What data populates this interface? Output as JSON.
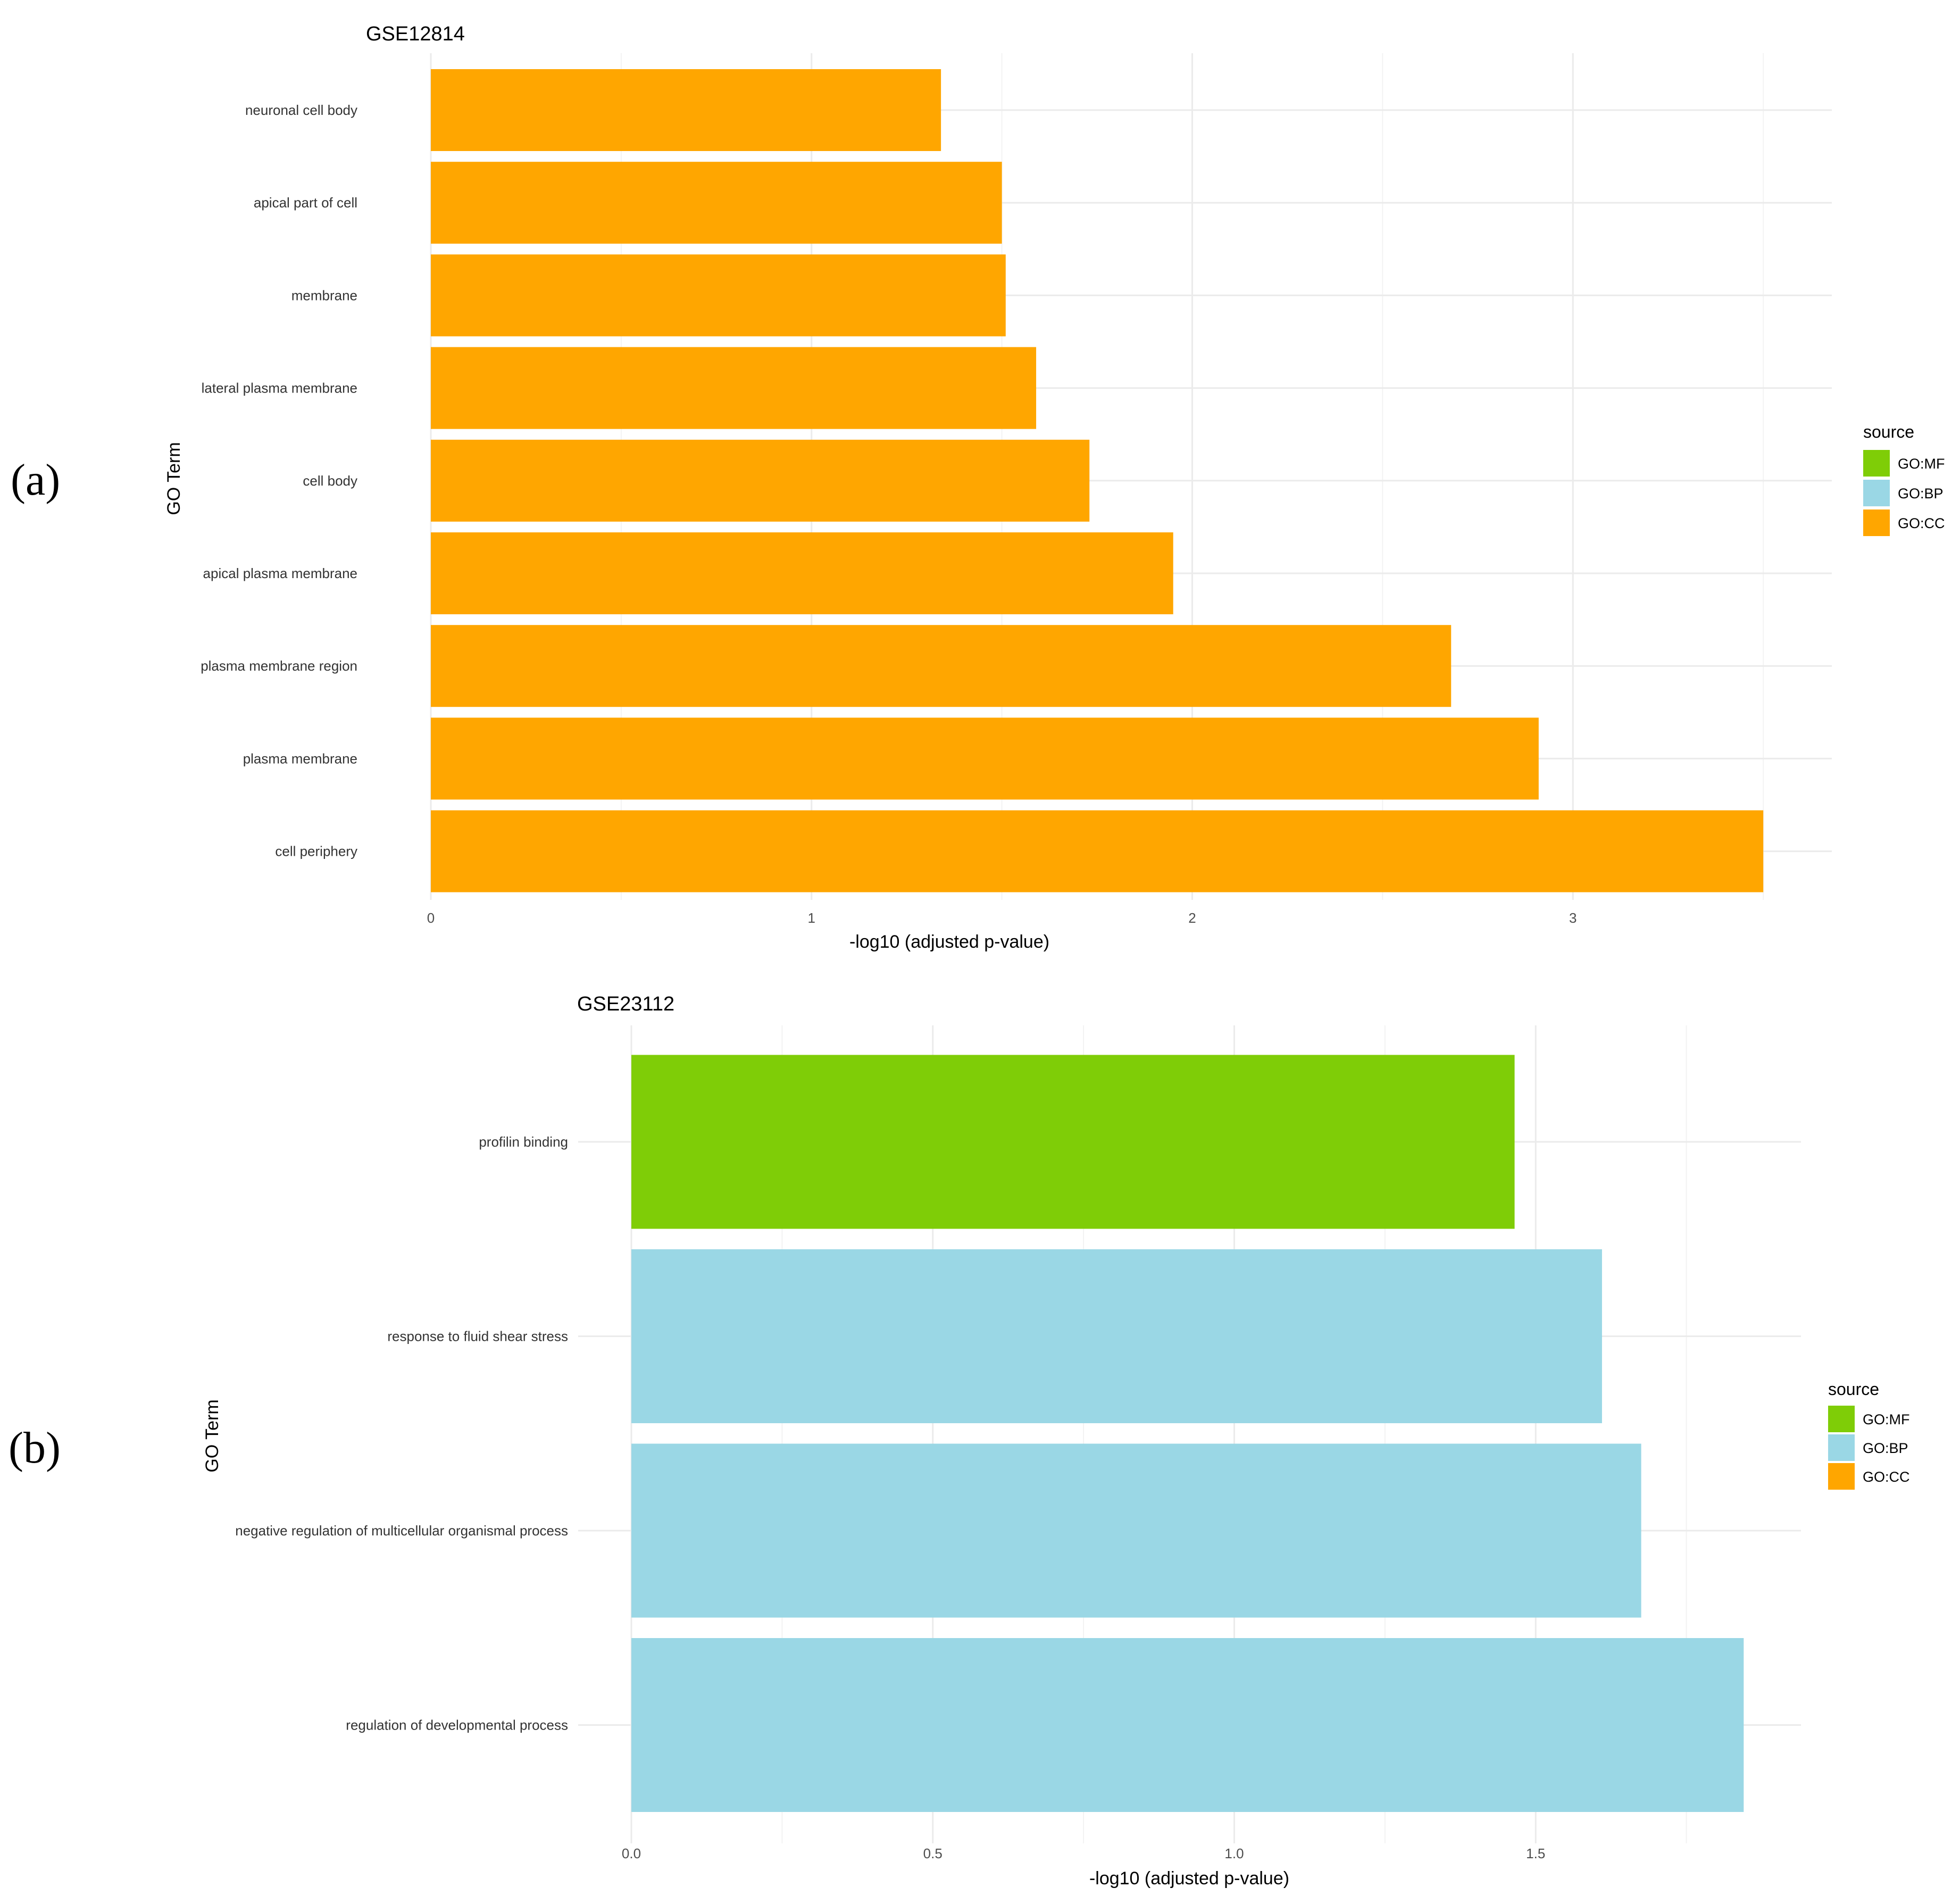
{
  "panels": [
    {
      "panel_label": "(a)",
      "colors": {
        "GO:MF": "#7fcd07",
        "GO:BP": "#9ad7e5",
        "GO:CC": "#ffa600"
      },
      "legend": {
        "title": "source",
        "items": [
          "GO:MF",
          "GO:BP",
          "GO:CC"
        ]
      },
      "chart_data": {
        "type": "bar",
        "orientation": "horizontal",
        "title": "GSE12814",
        "xlabel": "-log10 (adjusted p-value)",
        "ylabel": "GO Term",
        "xlim": [
          0,
          3.68
        ],
        "xticks": [
          0,
          1,
          2,
          3
        ],
        "xtick_labels": [
          "0",
          "1",
          "2",
          "3"
        ],
        "categories": [
          "neuronal cell body",
          "apical part of cell",
          "membrane",
          "lateral plasma membrane",
          "cell body",
          "apical plasma membrane",
          "plasma membrane region",
          "plasma membrane",
          "cell periphery"
        ],
        "values": [
          1.34,
          1.5,
          1.51,
          1.59,
          1.73,
          1.95,
          2.68,
          2.91,
          3.5
        ],
        "sources": [
          "GO:CC",
          "GO:CC",
          "GO:CC",
          "GO:CC",
          "GO:CC",
          "GO:CC",
          "GO:CC",
          "GO:CC",
          "GO:CC"
        ]
      }
    },
    {
      "panel_label": "(b)",
      "colors": {
        "GO:MF": "#7fcd07",
        "GO:BP": "#9ad7e5",
        "GO:CC": "#ffa600"
      },
      "legend": {
        "title": "source",
        "items": [
          "GO:MF",
          "GO:BP",
          "GO:CC"
        ]
      },
      "chart_data": {
        "type": "bar",
        "orientation": "horizontal",
        "title": "GSE23112",
        "xlabel": "-log10 (adjusted p-value)",
        "ylabel": "GO Term",
        "xlim": [
          0,
          1.94
        ],
        "xticks": [
          0,
          0.5,
          1,
          1.5
        ],
        "xtick_labels": [
          "0.0",
          "0.5",
          "1.0",
          "1.5"
        ],
        "categories": [
          "profilin binding",
          "response to fluid shear stress",
          "negative regulation of multicellular organismal process",
          "regulation of developmental process"
        ],
        "values": [
          1.465,
          1.61,
          1.675,
          1.845
        ],
        "sources": [
          "GO:MF",
          "GO:BP",
          "GO:BP",
          "GO:BP"
        ]
      }
    }
  ]
}
